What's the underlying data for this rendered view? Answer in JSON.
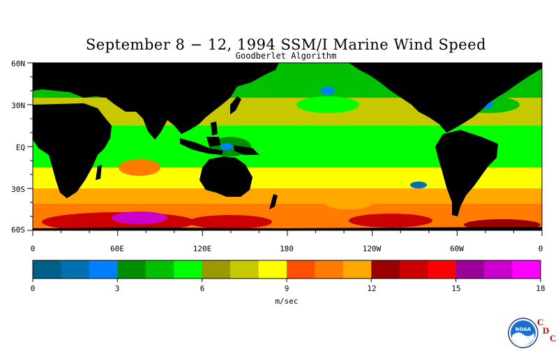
{
  "title": "September 8 − 12, 1994 SSM/I Marine Wind Speed",
  "subtitle": "Goodberlet Algorithm",
  "map": {
    "lat_labels": [
      "60N",
      "30N",
      "EQ",
      "30S",
      "60S"
    ],
    "lon_labels": [
      "0",
      "60E",
      "120E",
      "180",
      "120W",
      "60W",
      "0"
    ],
    "land_color": "#000000"
  },
  "colorbar": {
    "colors": [
      "#005f87",
      "#0070b0",
      "#0080ff",
      "#008f00",
      "#00c000",
      "#00ff00",
      "#999900",
      "#c8c800",
      "#ffff00",
      "#ff5000",
      "#ff7c00",
      "#ffa800",
      "#990000",
      "#cc0000",
      "#ff0000",
      "#990099",
      "#cc00cc",
      "#ff00ff"
    ],
    "tick_labels": [
      "0",
      "3",
      "6",
      "9",
      "12",
      "15",
      "18"
    ],
    "units": "m/sec",
    "min": 0,
    "max": 18
  },
  "logo": {
    "org_text": "NOAA",
    "letters": [
      "C",
      "D",
      "C"
    ],
    "accent": "#cc0000"
  }
}
